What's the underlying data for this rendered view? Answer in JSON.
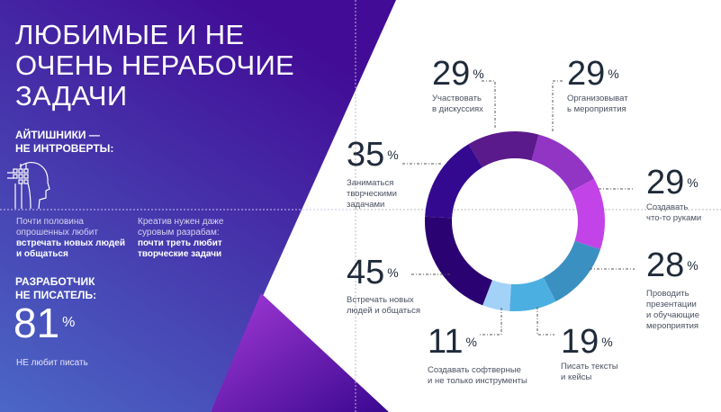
{
  "header": {
    "title_lines": [
      "ЛЮБИМЫЕ И НЕ",
      "ОЧЕНЬ НЕРАБОЧИЕ",
      "ЗАДАЧИ"
    ]
  },
  "sidebar": {
    "section1_title": [
      "АЙТИШНИКИ —",
      "НЕ ИНТРОВЕРТЫ:"
    ],
    "icon": "head-circuit-icon",
    "fact1": {
      "plain": [
        "Почти половина",
        "опрошенных любит"
      ],
      "bold": [
        "встречать новых людей",
        "и общаться"
      ]
    },
    "fact2": {
      "plain": [
        "Креатив нужен даже",
        "суровым разрабам:"
      ],
      "bold": [
        "почти треть любит",
        "творческие задачи"
      ]
    },
    "section2_title": [
      "РАЗРАБОТЧИК",
      "НЕ ПИСАТЕЛЬ:"
    ],
    "stat_value": "81",
    "stat_unit": "%",
    "stat_caption": "НЕ любит писать"
  },
  "chart_data": {
    "type": "pie",
    "variant": "donut",
    "unit": "%",
    "categories": [
      "Участвовать в дискуссиях",
      "Организовывать мероприятия",
      "Создавать что-то руками",
      "Проводить презентации и обучающие мероприятия",
      "Писать тексты и кейсы",
      "Создавать софтверные и не только инструменты",
      "Встречать новых людей и общаться",
      "Заниматься творческими задачами"
    ],
    "values": [
      29,
      29,
      29,
      28,
      19,
      11,
      45,
      35
    ],
    "colors": [
      "#5b1a8c",
      "#9234c4",
      "#c244e8",
      "#3b90c2",
      "#4cafe2",
      "#a3d2f8",
      "#2b0272",
      "#33098f"
    ],
    "labels": [
      {
        "value": "29",
        "lines": [
          "Участвовать",
          "в дискуссиях"
        ]
      },
      {
        "value": "29",
        "lines": [
          "Организовыват",
          "ь мероприятия"
        ]
      },
      {
        "value": "29",
        "lines": [
          "Создавать",
          "что-то руками"
        ]
      },
      {
        "value": "28",
        "lines": [
          "Проводить",
          "презентации",
          "и обучающие",
          "мероприятия"
        ]
      },
      {
        "value": "19",
        "lines": [
          "Писать тексты",
          "и кейсы"
        ]
      },
      {
        "value": "11",
        "lines": [
          "Создавать софтверные",
          "и не только инструменты"
        ]
      },
      {
        "value": "45",
        "lines": [
          "Встречать новых",
          "людей и общаться"
        ]
      },
      {
        "value": "35",
        "lines": [
          "Заниматься",
          "творческими",
          "задачами"
        ]
      }
    ]
  }
}
